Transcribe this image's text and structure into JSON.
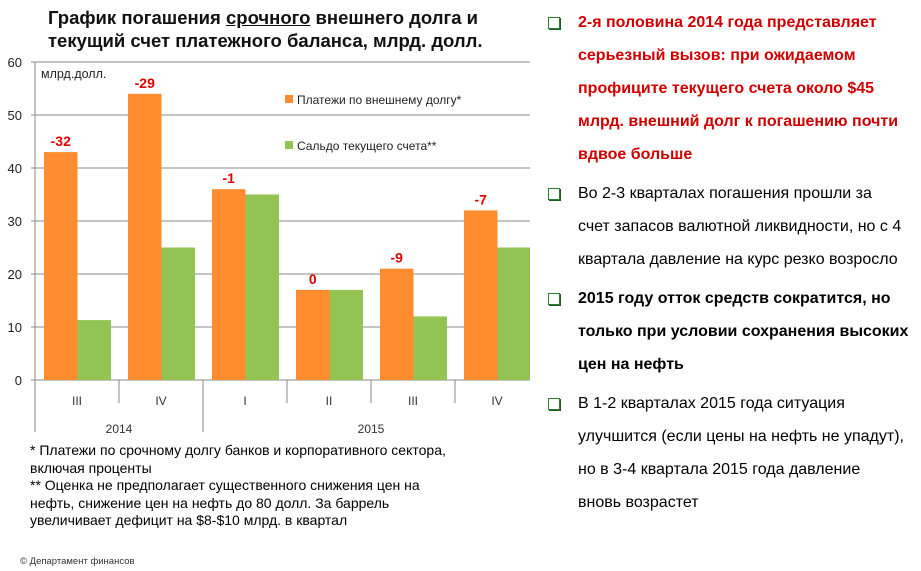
{
  "title": {
    "part1": "График погашения ",
    "underlined": "срочного",
    "part2": " внешнего долга и",
    "line2": "текущий счет платежного баланса, млрд. долл."
  },
  "chart_data": {
    "type": "bar",
    "unit_label": "млрд.долл.",
    "categories": [
      "III",
      "IV",
      "I",
      "II",
      "III",
      "IV"
    ],
    "groups": [
      {
        "label": "2014",
        "span": 2
      },
      {
        "label": "2015",
        "span": 4
      }
    ],
    "series": [
      {
        "name": "Платежи по внешнему долгу*",
        "color": "#ff8c2e",
        "values": [
          43,
          54,
          36,
          17,
          21,
          32
        ]
      },
      {
        "name": "Сальдо текущего счета**",
        "color": "#92c353",
        "values": [
          11.3,
          25,
          35,
          17,
          12,
          25
        ]
      }
    ],
    "data_labels": [
      "-32",
      "-29",
      "-1",
      "0",
      "-9",
      "-7"
    ],
    "data_label_color": "#e00000",
    "ylim": [
      0,
      60
    ],
    "yticks": [
      0,
      10,
      20,
      30,
      40,
      50,
      60
    ],
    "grid": true,
    "legend": "top-right"
  },
  "notes": [
    "* Платежи по срочному долгу банков и корпоративного сектора,",
    "включая проценты",
    "** Оценка не предполагает существенного снижения цен на",
    "нефть, снижение цен на нефть до 80 долл. За баррель",
    "увеличивает дефицит на $8-$10 млрд. в квартал"
  ],
  "copyright": "© Департамент финансов",
  "bullets": [
    {
      "style": "red",
      "lines": [
        "2-я половина 2014 года представляет",
        "серьезный вызов: при ожидаемом",
        "профиците текущего счета около $45",
        "млрд. внешний долг к погашению почти",
        "вдвое больше"
      ]
    },
    {
      "style": "normal",
      "lines": [
        "Во 2-3 кварталах погашения прошли за",
        "счет запасов валютной ликвидности, но с 4",
        "квартала давление на курс резко возросло"
      ]
    },
    {
      "style": "bold",
      "lines": [
        "2015 году отток средств сократится, но",
        "только при условии сохранения высоких",
        "цен на нефть"
      ]
    },
    {
      "style": "normal",
      "lines": [
        "В 1-2 кварталах 2015 года ситуация",
        "улучшится (если цены на нефть не упадут),",
        "но в 3-4 квартала 2015 года давление",
        "вновь возрастет"
      ]
    }
  ]
}
